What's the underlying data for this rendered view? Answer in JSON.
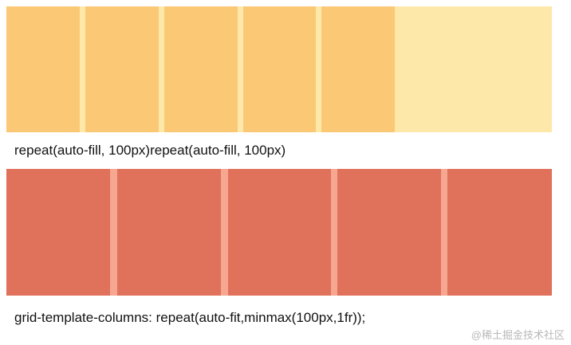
{
  "auto_fill_example": {
    "caption": "repeat(auto-fill, 100px)repeat(auto-fill, 100px)",
    "column_count": 5,
    "colors": {
      "cell": "#fbc975",
      "gap": "#fde8a9",
      "background": "#fde8a9"
    }
  },
  "auto_fit_example": {
    "caption": "grid-template-columns: repeat(auto-fit,minmax(100px,1fr));",
    "column_count": 5,
    "colors": {
      "cell": "#e0715a",
      "gap": "#f6a792"
    }
  },
  "watermark": "@稀土掘金技术社区"
}
